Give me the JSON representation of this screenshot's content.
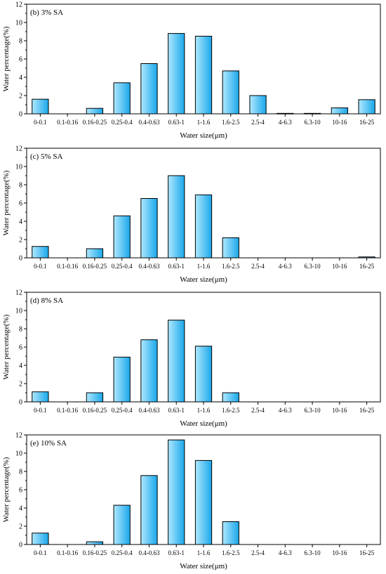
{
  "chart_data": [
    {
      "type": "bar",
      "panel_label": "(b) 3% SA",
      "xlabel": "Water size(μm)",
      "ylabel": "Water percentage(%)",
      "ylim": [
        0,
        12
      ],
      "yticks": [
        0,
        2,
        4,
        6,
        8,
        10,
        12
      ],
      "categories": [
        "0-0.1",
        "0.1-0.16",
        "0.16-0.25",
        "0.25-0.4",
        "0.4-0.63",
        "0.63-1",
        "1-1.6",
        "1.6-2.5",
        "2.5-4",
        "4-6.3",
        "6.3-10",
        "10-16",
        "16-25"
      ],
      "values": [
        1.6,
        0,
        0.6,
        3.4,
        5.5,
        8.8,
        8.5,
        4.7,
        2.0,
        0.05,
        0.05,
        0.65,
        1.55
      ]
    },
    {
      "type": "bar",
      "panel_label": "(c) 5% SA",
      "xlabel": "Water size(μm)",
      "ylabel": "Water percentage(%)",
      "ylim": [
        0,
        12
      ],
      "yticks": [
        0,
        2,
        4,
        6,
        8,
        10,
        12
      ],
      "categories": [
        "0-0.1",
        "0.1-0.16",
        "0.16-0.25",
        "0.25-0.4",
        "0.4-0.63",
        "0.63-1",
        "1-1.6",
        "1.6-2.5",
        "2.5-4",
        "4-6.3",
        "6.3-10",
        "10-16",
        "16-25"
      ],
      "values": [
        1.25,
        0,
        1.0,
        4.6,
        6.5,
        9.0,
        6.9,
        2.2,
        0,
        0,
        0,
        0,
        0.1
      ]
    },
    {
      "type": "bar",
      "panel_label": "(d) 8% SA",
      "xlabel": "Water size(μm)",
      "ylabel": "Water percentage(%)",
      "ylim": [
        0,
        12
      ],
      "yticks": [
        0,
        2,
        4,
        6,
        8,
        10,
        12
      ],
      "categories": [
        "0-0.1",
        "0.1-0.16",
        "0.16-0.25",
        "0.25-0.4",
        "0.4-0.63",
        "0.63-1",
        "1-1.6",
        "1.6-2.5",
        "2.5-4",
        "4-6.3",
        "6.3-10",
        "10-16",
        "16-25"
      ],
      "values": [
        1.1,
        0,
        1.0,
        4.9,
        6.8,
        8.95,
        6.1,
        1.0,
        0,
        0,
        0,
        0,
        0
      ]
    },
    {
      "type": "bar",
      "panel_label": "(e) 10% SA",
      "xlabel": "Water size(μm)",
      "ylabel": "Water percentage(%)",
      "ylim": [
        0,
        12
      ],
      "yticks": [
        0,
        2,
        4,
        6,
        8,
        10,
        12
      ],
      "categories": [
        "0-0.1",
        "0.1-0.16",
        "0.16-0.25",
        "0.25-0.4",
        "0.4-0.63",
        "0.63-1",
        "1-1.6",
        "1.6-2.5",
        "2.5-4",
        "4-6.3",
        "6.3-10",
        "10-16",
        "16-25"
      ],
      "values": [
        1.25,
        0,
        0.3,
        4.3,
        7.55,
        11.45,
        9.2,
        2.5,
        0,
        0,
        0,
        0,
        0
      ]
    }
  ],
  "colors": {
    "bar_top": "#aee8ff",
    "bar_bottom": "#1aa7ea",
    "bar_stroke": "#000000",
    "axis": "#000000"
  }
}
